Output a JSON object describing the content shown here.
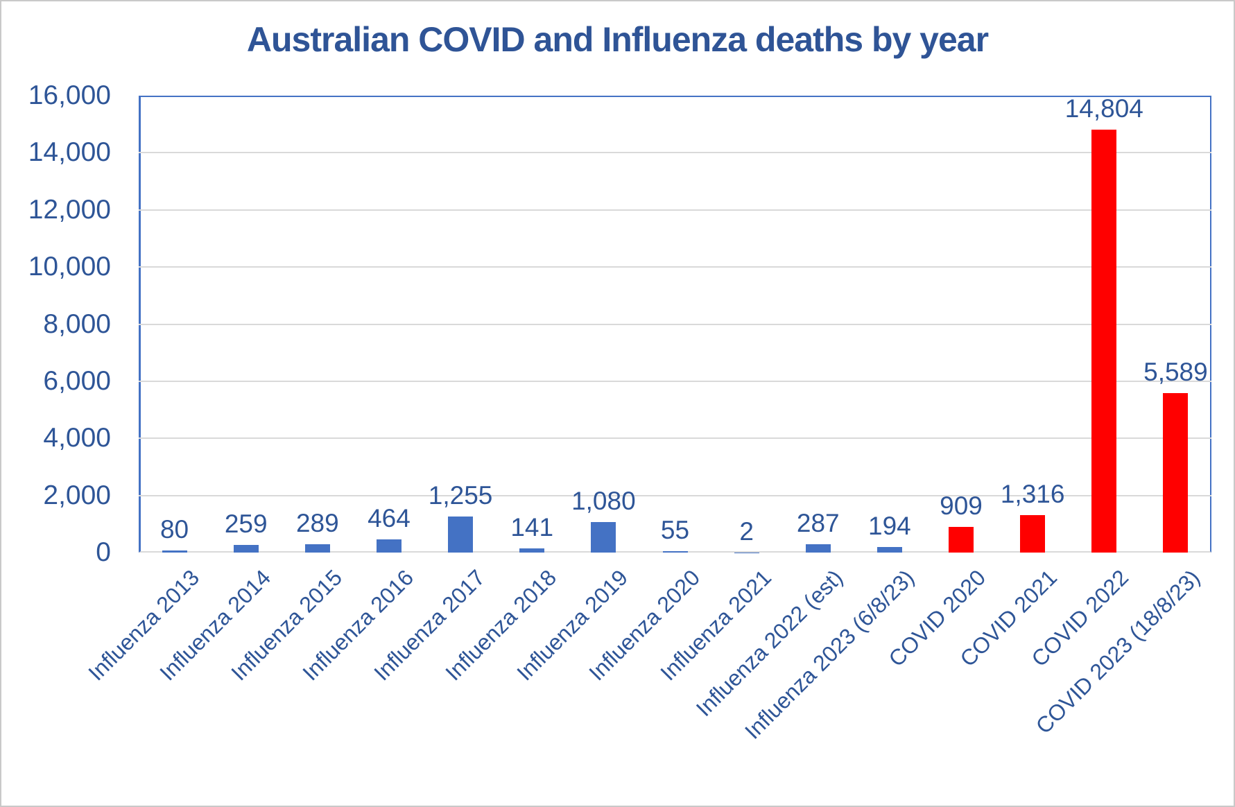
{
  "chart_data": {
    "type": "bar",
    "title": "Australian COVID and Influenza deaths by year",
    "categories": [
      "Influenza 2013",
      "Influenza 2014",
      "Influenza 2015",
      "Influenza 2016",
      "Influenza 2017",
      "Influenza 2018",
      "Influenza 2019",
      "Influenza 2020",
      "Influenza 2021",
      "Influenza 2022 (est)",
      "Influenza 2023 (6/8/23)",
      "COVID 2020",
      "COVID 2021",
      "COVID 2022",
      "COVID 2023 (18/8/23)"
    ],
    "values": [
      80,
      259,
      289,
      464,
      1255,
      141,
      1080,
      55,
      2,
      287,
      194,
      909,
      1316,
      14804,
      5589
    ],
    "value_labels": [
      "80",
      "259",
      "289",
      "464",
      "1,255",
      "141",
      "1,080",
      "55",
      "2",
      "287",
      "194",
      "909",
      "1,316",
      "14,804",
      "5,589"
    ],
    "bar_colors": [
      "#4472C4",
      "#4472C4",
      "#4472C4",
      "#4472C4",
      "#4472C4",
      "#4472C4",
      "#4472C4",
      "#4472C4",
      "#4472C4",
      "#4472C4",
      "#4472C4",
      "#FF0000",
      "#FF0000",
      "#FF0000",
      "#FF0000"
    ],
    "series_colors": {
      "influenza": "#4472C4",
      "covid": "#FF0000"
    },
    "xlabel": "",
    "ylabel": "",
    "ylim": [
      0,
      16000
    ],
    "ytick_interval": 2000,
    "ytick_labels": [
      "0",
      "2,000",
      "4,000",
      "6,000",
      "8,000",
      "10,000",
      "12,000",
      "14,000",
      "16,000"
    ],
    "grid": "horizontal",
    "legend": "none"
  },
  "styles": {
    "text_color": "#2E5597",
    "title_color": "#2F5496",
    "gridline_color": "#D9D9D9",
    "axis_line_color": "#4472C4",
    "background": "#FFFFFF",
    "page_border_color": "#C9C9C9"
  }
}
